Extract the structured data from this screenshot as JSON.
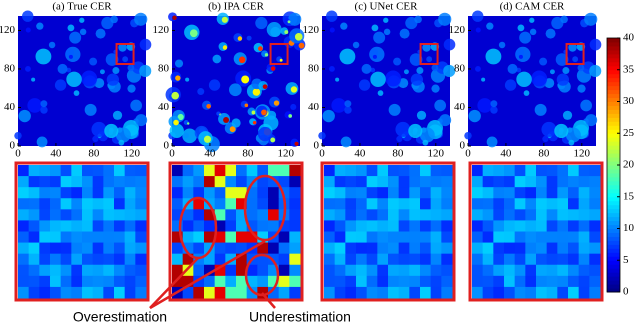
{
  "chart_data": [
    {
      "type": "heatmap",
      "title": "(a) True CER",
      "xlim": [
        0,
        135
      ],
      "ylim": [
        0,
        135
      ],
      "xticks": [
        0,
        40,
        80,
        120
      ],
      "yticks": [
        0,
        40,
        80,
        120
      ]
    },
    {
      "type": "heatmap",
      "title": "(b) IPA CER",
      "xlim": [
        0,
        135
      ],
      "ylim": [
        0,
        135
      ],
      "xticks": [
        0,
        40,
        80,
        120
      ],
      "yticks": [
        0,
        40,
        80,
        120
      ],
      "annotations": [
        {
          "text": "Overestimation",
          "color": "#8a6a12"
        },
        {
          "text": "Underestimation",
          "color": "#1c1ca8"
        }
      ]
    },
    {
      "type": "heatmap",
      "title": "(c) UNet CER",
      "xlim": [
        0,
        135
      ],
      "ylim": [
        0,
        135
      ],
      "xticks": [
        0,
        40,
        80,
        120
      ],
      "yticks": [
        0,
        40,
        80,
        120
      ]
    },
    {
      "type": "heatmap",
      "title": "(d) CAM CER",
      "xlim": [
        0,
        135
      ],
      "ylim": [
        0,
        135
      ],
      "xticks": [
        0,
        40,
        80,
        120
      ],
      "yticks": [
        0,
        40,
        80,
        120
      ]
    },
    {
      "type": "colorbar",
      "colormap": "jet",
      "lim": [
        0,
        40
      ],
      "ticks": [
        0,
        5,
        10,
        15,
        20,
        25,
        30,
        35,
        40
      ]
    }
  ]
}
